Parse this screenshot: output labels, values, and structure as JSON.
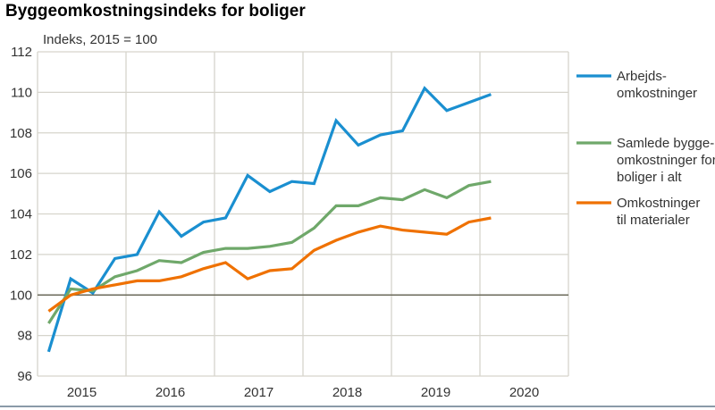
{
  "chart_data": {
    "type": "line",
    "title": "Byggeomkostningsindeks for boliger",
    "ylabel": "Indeks, 2015 = 100",
    "xlabel": "",
    "ylim": [
      96,
      112
    ],
    "yticks": [
      96,
      98,
      100,
      102,
      104,
      106,
      108,
      110,
      112
    ],
    "reference_line": 100,
    "x_tick_labels": [
      "2015",
      "2016",
      "2017",
      "2018",
      "2019",
      "2020"
    ],
    "x": [
      "2015Q1",
      "2015Q2",
      "2015Q3",
      "2015Q4",
      "2016Q1",
      "2016Q2",
      "2016Q3",
      "2016Q4",
      "2017Q1",
      "2017Q2",
      "2017Q3",
      "2017Q4",
      "2018Q1",
      "2018Q2",
      "2018Q3",
      "2018Q4",
      "2019Q1",
      "2019Q2",
      "2019Q3",
      "2019Q4",
      "2020Q1"
    ],
    "grid": true,
    "legend_position": "right",
    "series": [
      {
        "name": [
          "Arbejds-",
          "omkostninger"
        ],
        "color": "#1a8fd0",
        "values": [
          97.2,
          100.8,
          100.1,
          101.8,
          102.0,
          104.1,
          102.9,
          103.6,
          103.8,
          105.9,
          105.1,
          105.6,
          105.5,
          108.6,
          107.4,
          107.9,
          108.1,
          110.2,
          109.1,
          109.5,
          109.9
        ]
      },
      {
        "name": [
          "Samlede bygge-",
          "omkostninger for",
          "boliger i alt"
        ],
        "color": "#6fa86a",
        "values": [
          98.6,
          100.3,
          100.2,
          100.9,
          101.2,
          101.7,
          101.6,
          102.1,
          102.3,
          102.3,
          102.4,
          102.6,
          103.3,
          104.4,
          104.4,
          104.8,
          104.7,
          105.2,
          104.8,
          105.4,
          105.6
        ]
      },
      {
        "name": [
          "Omkostninger",
          "til materialer"
        ],
        "color": "#ef7100",
        "values": [
          99.2,
          100.0,
          100.3,
          100.5,
          100.7,
          100.7,
          100.9,
          101.3,
          101.6,
          100.8,
          101.2,
          101.3,
          102.2,
          102.7,
          103.1,
          103.4,
          103.2,
          103.1,
          103.0,
          103.6,
          103.8
        ]
      }
    ]
  }
}
